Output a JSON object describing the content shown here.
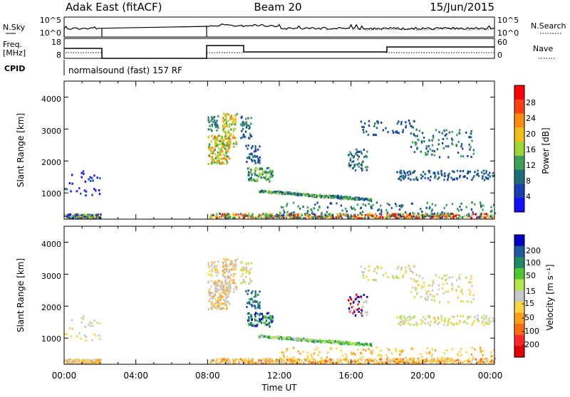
{
  "header": {
    "station": "Adak East (fitACF)",
    "beam": "Beam 20",
    "date": "15/Jun/2015"
  },
  "noise_panel": {
    "left_label": "N.Sky",
    "left_ticks": [
      "10^5",
      "10^0"
    ],
    "right_label": "N.Search",
    "right_ticks": [
      "10^5",
      "10^0"
    ]
  },
  "freq_panel": {
    "left_label_line1": "Freq.",
    "left_label_line2": "[MHz]",
    "left_ticks": [
      "18",
      "8"
    ],
    "right_label": "Nave",
    "right_ticks": [
      "60",
      "0"
    ]
  },
  "cpid_panel": {
    "label": "CPID",
    "text": "normalsound (fast) 157 RF"
  },
  "chart_data": [
    {
      "type": "heatmap",
      "name": "power",
      "ylabel": "Slant Range [km]",
      "ylim": [
        180,
        4500
      ],
      "y_ticks": [
        "4000",
        "3000",
        "2000",
        "1000"
      ],
      "colorbar_label": "Power [dB]",
      "colorbar_ticks": [
        "28",
        "24",
        "20",
        "16",
        "12",
        "8",
        "4"
      ],
      "colors": [
        "#1010ff",
        "#1a40b0",
        "#1e6e78",
        "#3e9e5a",
        "#9ed836",
        "#f0c018",
        "#ff8c10",
        "#ff4010",
        "#ff0000"
      ],
      "data_gaps_ut": [
        [
          2.0,
          8.0
        ]
      ]
    },
    {
      "type": "heatmap",
      "name": "velocity",
      "ylabel": "Slant Range [km]",
      "ylim": [
        180,
        4500
      ],
      "y_ticks": [
        "4000",
        "3000",
        "2000",
        "1000"
      ],
      "xlabel": "Time UT",
      "x_ticks": [
        "00:00",
        "04:00",
        "08:00",
        "12:00",
        "16:00",
        "20:00",
        "00:00"
      ],
      "colorbar_label": "Velocity [m s⁻¹]",
      "colorbar_ticks": [
        "200",
        "100",
        "50",
        "15",
        "-15",
        "-50",
        "-100",
        "-200"
      ],
      "colors": [
        "#0000c8",
        "#1e5aa0",
        "#1e8c64",
        "#50c832",
        "#b4e650",
        "#c8c8c8",
        "#ffd24a",
        "#ffa01e",
        "#ff6e14",
        "#ff2828",
        "#e00000"
      ],
      "data_gaps_ut": [
        [
          2.0,
          8.0
        ]
      ]
    }
  ]
}
